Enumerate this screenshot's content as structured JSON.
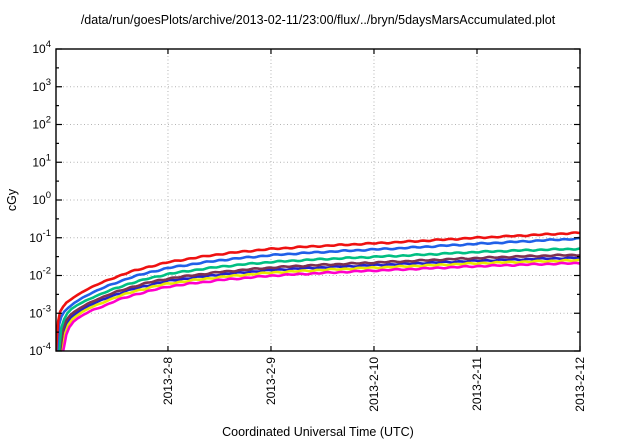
{
  "title": "/data/run/goesPlots/archive/2013-02-11/23:00/flux/../bryn/5daysMarsAccumulated.plot",
  "chart_data": {
    "type": "line",
    "title": "/data/run/goesPlots/archive/2013-02-11/23:00/flux/../bryn/5daysMarsAccumulated.plot",
    "xlabel": "Coordinated Universal Time (UTC)",
    "ylabel": "cGy",
    "x_domain_days": [
      0,
      5.087
    ],
    "x_ticks": [
      {
        "t": 1.087,
        "label": "2013-2-8"
      },
      {
        "t": 2.087,
        "label": "2013-2-9"
      },
      {
        "t": 3.087,
        "label": "2013-2-10"
      },
      {
        "t": 4.087,
        "label": "2013-2-11"
      },
      {
        "t": 5.087,
        "label": "2013-2-12"
      }
    ],
    "y_log_range": [
      -4,
      4
    ],
    "y_tick_exponents": [
      4,
      3,
      2,
      1,
      0,
      -1,
      -2,
      -3,
      -4
    ],
    "grid": true,
    "legend": "none",
    "frame_color": "#000000",
    "grid_color": "#b4b4b4",
    "background": "#ffffff",
    "series": [
      {
        "name": "navy",
        "color": "#2222cc",
        "points": [
          [
            0.05,
            0.0001
          ],
          [
            0.08,
            0.00035
          ],
          [
            0.11,
            0.00058
          ],
          [
            0.15,
            0.0008
          ],
          [
            0.19,
            0.00097
          ],
          [
            0.25,
            0.00125
          ],
          [
            0.32,
            0.0016
          ],
          [
            0.42,
            0.0021
          ],
          [
            0.56,
            0.003
          ],
          [
            0.75,
            0.0044
          ],
          [
            0.94,
            0.0059
          ],
          [
            1.09,
            0.0072
          ],
          [
            1.35,
            0.0089
          ],
          [
            1.6,
            0.0107
          ],
          [
            1.85,
            0.0123
          ],
          [
            2.09,
            0.0139
          ],
          [
            2.35,
            0.0152
          ],
          [
            2.6,
            0.0164
          ],
          [
            2.85,
            0.0176
          ],
          [
            3.09,
            0.0188
          ],
          [
            3.35,
            0.0201
          ],
          [
            3.6,
            0.0215
          ],
          [
            3.85,
            0.023
          ],
          [
            4.09,
            0.0245
          ],
          [
            4.35,
            0.0259
          ],
          [
            4.6,
            0.0272
          ],
          [
            4.85,
            0.0284
          ],
          [
            5.087,
            0.0295
          ]
        ]
      },
      {
        "name": "yellow",
        "color": "#e8e800",
        "points": [
          [
            0.06,
            0.0001
          ],
          [
            0.09,
            0.0003
          ],
          [
            0.12,
            0.0005
          ],
          [
            0.16,
            0.0007
          ],
          [
            0.2,
            0.00085
          ],
          [
            0.26,
            0.0011
          ],
          [
            0.33,
            0.0014
          ],
          [
            0.43,
            0.0018
          ],
          [
            0.57,
            0.0026
          ],
          [
            0.76,
            0.0038
          ],
          [
            0.95,
            0.0051
          ],
          [
            1.09,
            0.0061
          ],
          [
            1.35,
            0.0076
          ],
          [
            1.6,
            0.0091
          ],
          [
            1.85,
            0.0105
          ],
          [
            2.09,
            0.0119
          ],
          [
            2.35,
            0.013
          ],
          [
            2.6,
            0.0141
          ],
          [
            2.85,
            0.0151
          ],
          [
            3.09,
            0.0161
          ],
          [
            3.35,
            0.0172
          ],
          [
            3.6,
            0.0184
          ],
          [
            3.85,
            0.0197
          ],
          [
            4.09,
            0.021
          ],
          [
            4.35,
            0.0222
          ],
          [
            4.6,
            0.0233
          ],
          [
            4.85,
            0.0243
          ],
          [
            5.087,
            0.0252
          ]
        ]
      },
      {
        "name": "magenta",
        "color": "#ff00cc",
        "points": [
          [
            0.07,
            0.0001
          ],
          [
            0.1,
            0.00027
          ],
          [
            0.13,
            0.00043
          ],
          [
            0.17,
            0.0006
          ],
          [
            0.21,
            0.00073
          ],
          [
            0.27,
            0.00092
          ],
          [
            0.35,
            0.0012
          ],
          [
            0.45,
            0.0015
          ],
          [
            0.59,
            0.0022
          ],
          [
            0.78,
            0.0032
          ],
          [
            0.96,
            0.0042
          ],
          [
            1.09,
            0.0051
          ],
          [
            1.35,
            0.0063
          ],
          [
            1.6,
            0.0076
          ],
          [
            1.85,
            0.0087
          ],
          [
            2.09,
            0.0099
          ],
          [
            2.35,
            0.0108
          ],
          [
            2.6,
            0.0117
          ],
          [
            2.85,
            0.0126
          ],
          [
            3.09,
            0.0135
          ],
          [
            3.35,
            0.0144
          ],
          [
            3.6,
            0.0154
          ],
          [
            3.85,
            0.0165
          ],
          [
            4.09,
            0.0176
          ],
          [
            4.35,
            0.0186
          ],
          [
            4.6,
            0.0196
          ],
          [
            4.85,
            0.0205
          ],
          [
            5.087,
            0.0213
          ]
        ]
      },
      {
        "name": "maroon",
        "color": "#7d3150",
        "points": [
          [
            0.04,
            0.0001
          ],
          [
            0.07,
            0.0004
          ],
          [
            0.1,
            0.00065
          ],
          [
            0.14,
            0.0009
          ],
          [
            0.18,
            0.0011
          ],
          [
            0.24,
            0.0014
          ],
          [
            0.31,
            0.0018
          ],
          [
            0.41,
            0.0024
          ],
          [
            0.55,
            0.0034
          ],
          [
            0.74,
            0.005
          ],
          [
            0.93,
            0.0068
          ],
          [
            1.09,
            0.0083
          ],
          [
            1.35,
            0.0103
          ],
          [
            1.6,
            0.0124
          ],
          [
            1.85,
            0.0143
          ],
          [
            2.09,
            0.0162
          ],
          [
            2.35,
            0.0178
          ],
          [
            2.6,
            0.0192
          ],
          [
            2.85,
            0.0206
          ],
          [
            3.09,
            0.022
          ],
          [
            3.35,
            0.0236
          ],
          [
            3.6,
            0.0253
          ],
          [
            3.85,
            0.0272
          ],
          [
            4.09,
            0.029
          ],
          [
            4.35,
            0.0308
          ],
          [
            4.6,
            0.0325
          ],
          [
            4.85,
            0.034
          ],
          [
            5.087,
            0.0352
          ]
        ]
      },
      {
        "name": "green",
        "color": "#00bf82",
        "points": [
          [
            0.03,
            0.0001
          ],
          [
            0.05,
            0.0004
          ],
          [
            0.08,
            0.0007
          ],
          [
            0.11,
            0.001
          ],
          [
            0.15,
            0.0013
          ],
          [
            0.2,
            0.0016
          ],
          [
            0.28,
            0.0021
          ],
          [
            0.38,
            0.0028
          ],
          [
            0.53,
            0.0041
          ],
          [
            0.72,
            0.0062
          ],
          [
            0.92,
            0.0086
          ],
          [
            1.09,
            0.011
          ],
          [
            1.35,
            0.014
          ],
          [
            1.6,
            0.0172
          ],
          [
            1.85,
            0.02
          ],
          [
            2.09,
            0.0228
          ],
          [
            2.35,
            0.025
          ],
          [
            2.6,
            0.0272
          ],
          [
            2.85,
            0.0292
          ],
          [
            3.09,
            0.0312
          ],
          [
            3.35,
            0.0335
          ],
          [
            3.6,
            0.036
          ],
          [
            3.85,
            0.039
          ],
          [
            4.09,
            0.0418
          ],
          [
            4.35,
            0.0445
          ],
          [
            4.6,
            0.047
          ],
          [
            4.85,
            0.0492
          ],
          [
            5.087,
            0.051
          ]
        ]
      },
      {
        "name": "blue",
        "color": "#2060e8",
        "points": [
          [
            0.01,
            0.0001
          ],
          [
            0.03,
            0.0005
          ],
          [
            0.05,
            0.0008
          ],
          [
            0.08,
            0.0011
          ],
          [
            0.12,
            0.0014
          ],
          [
            0.18,
            0.0019
          ],
          [
            0.26,
            0.0026
          ],
          [
            0.36,
            0.0036
          ],
          [
            0.51,
            0.0054
          ],
          [
            0.71,
            0.0086
          ],
          [
            0.91,
            0.0122
          ],
          [
            1.09,
            0.0158
          ],
          [
            1.35,
            0.0205
          ],
          [
            1.6,
            0.0255
          ],
          [
            1.85,
            0.03
          ],
          [
            2.09,
            0.0345
          ],
          [
            2.35,
            0.0385
          ],
          [
            2.6,
            0.042
          ],
          [
            2.85,
            0.0455
          ],
          [
            3.09,
            0.049
          ],
          [
            3.35,
            0.053
          ],
          [
            3.6,
            0.058
          ],
          [
            3.85,
            0.0635
          ],
          [
            4.09,
            0.069
          ],
          [
            4.35,
            0.075
          ],
          [
            4.6,
            0.0815
          ],
          [
            4.85,
            0.0885
          ],
          [
            5.087,
            0.095
          ]
        ]
      },
      {
        "name": "red",
        "color": "#ee1111",
        "points": [
          [
            0.0,
            0.0001
          ],
          [
            0.02,
            0.0006
          ],
          [
            0.04,
            0.0011
          ],
          [
            0.07,
            0.0015
          ],
          [
            0.1,
            0.0019
          ],
          [
            0.17,
            0.0026
          ],
          [
            0.25,
            0.0036
          ],
          [
            0.35,
            0.005
          ],
          [
            0.5,
            0.0075
          ],
          [
            0.7,
            0.012
          ],
          [
            0.9,
            0.017
          ],
          [
            1.09,
            0.0225
          ],
          [
            1.35,
            0.0295
          ],
          [
            1.6,
            0.037
          ],
          [
            1.85,
            0.044
          ],
          [
            2.09,
            0.0505
          ],
          [
            2.35,
            0.056
          ],
          [
            2.6,
            0.061
          ],
          [
            2.85,
            0.066
          ],
          [
            3.09,
            0.071
          ],
          [
            3.35,
            0.077
          ],
          [
            3.6,
            0.084
          ],
          [
            3.85,
            0.092
          ],
          [
            4.09,
            0.1
          ],
          [
            4.35,
            0.108
          ],
          [
            4.6,
            0.117
          ],
          [
            4.85,
            0.126
          ],
          [
            5.087,
            0.135
          ]
        ]
      }
    ]
  }
}
